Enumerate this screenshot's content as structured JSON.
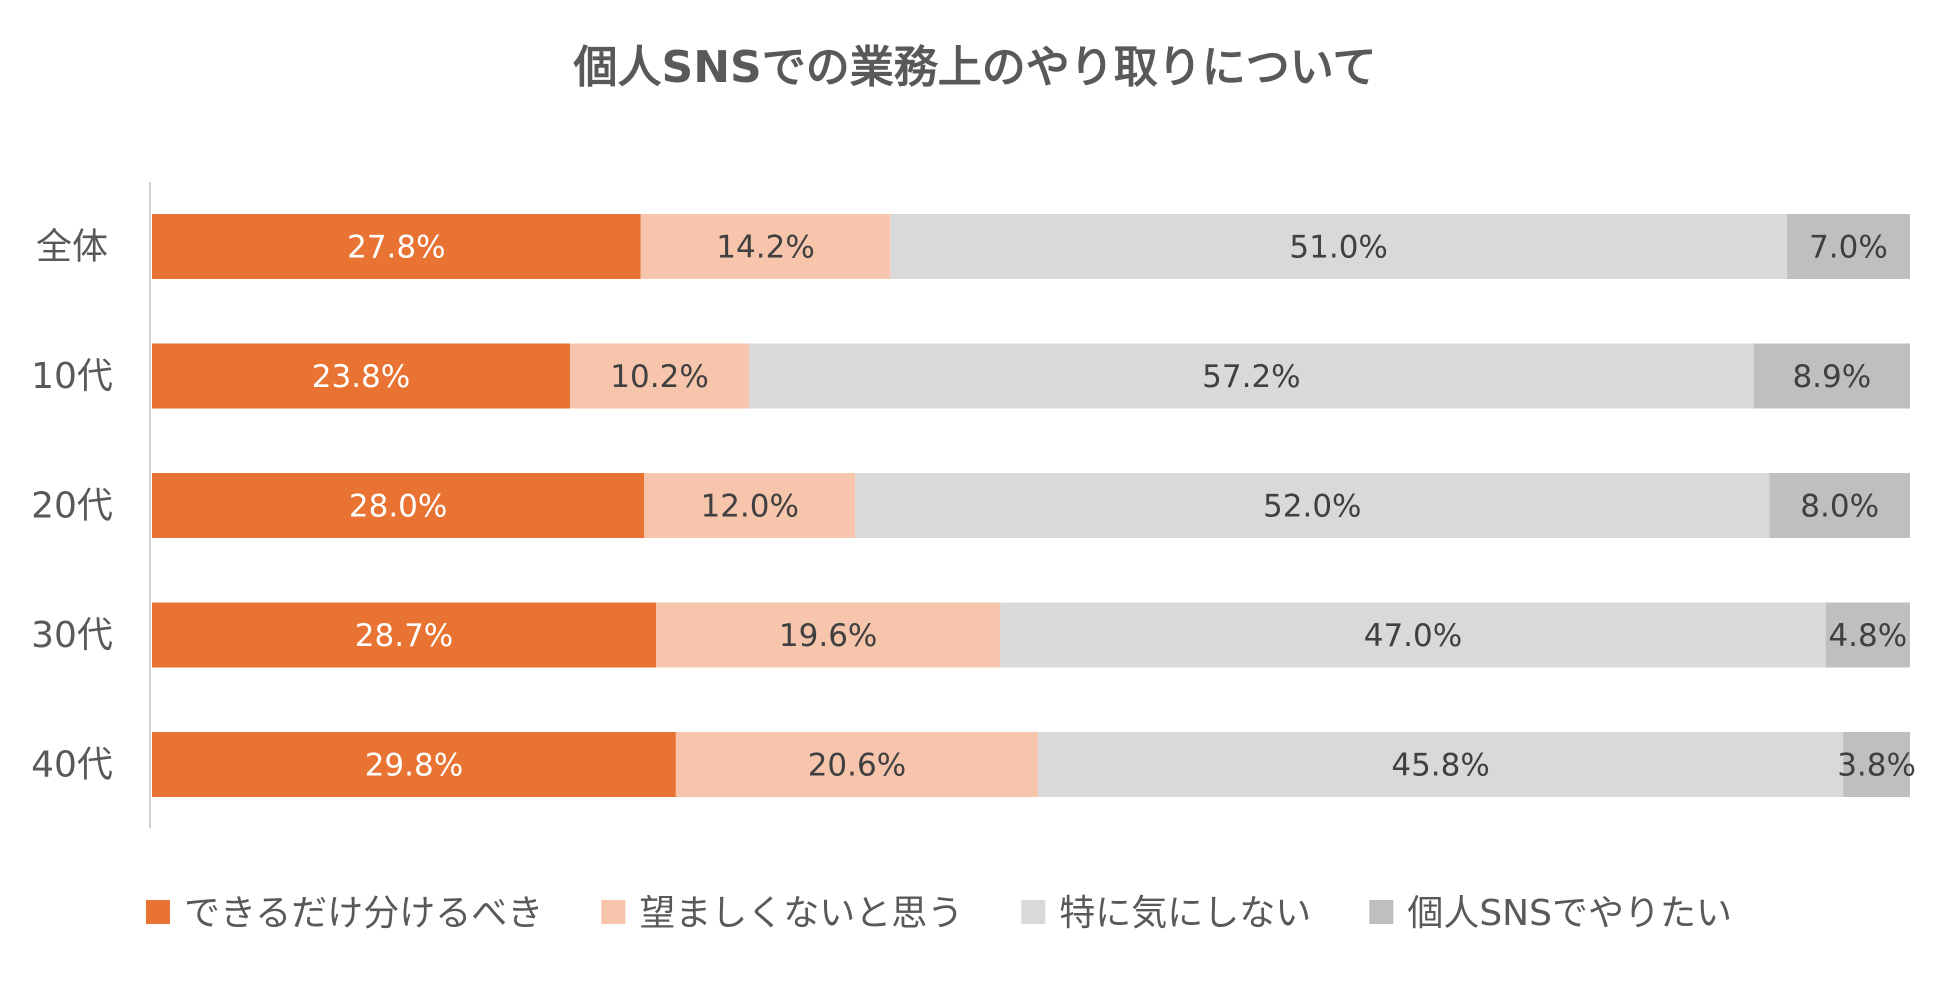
{
  "chart_data": {
    "type": "bar",
    "orientation": "horizontal",
    "stacked": true,
    "normalized": true,
    "title": "個人SNSでの業務上のやり取りについて",
    "xlabel": "",
    "ylabel": "",
    "xlim": [
      0,
      100
    ],
    "grid": false,
    "legend_position": "bottom",
    "categories": [
      "全体",
      "10代",
      "20代",
      "30代",
      "40代"
    ],
    "series": [
      {
        "name": "できるだけ分けるべき",
        "color": "#E87332",
        "label_color": "#FFFFFF",
        "values": [
          27.8,
          23.8,
          28.0,
          28.7,
          29.8
        ],
        "labels": [
          "27.8%",
          "23.8%",
          "28.0%",
          "28.7%",
          "29.8%"
        ]
      },
      {
        "name": "望ましくないと思う",
        "color": "#F6C5AC",
        "label_color": "#404040",
        "values": [
          14.2,
          10.2,
          12.0,
          19.6,
          20.6
        ],
        "labels": [
          "14.2%",
          "10.2%",
          "12.0%",
          "19.6%",
          "20.6%"
        ]
      },
      {
        "name": "特に気にしない",
        "color": "#D9D9D9",
        "label_color": "#404040",
        "values": [
          51.0,
          57.2,
          52.0,
          47.0,
          45.8
        ],
        "labels": [
          "51.0%",
          "57.2%",
          "52.0%",
          "47.0%",
          "45.8%"
        ]
      },
      {
        "name": "個人SNSでやりたい",
        "color": "#BFBFBF",
        "label_color": "#404040",
        "values": [
          7.0,
          8.9,
          8.0,
          4.8,
          3.8
        ],
        "labels": [
          "7.0%",
          "8.9%",
          "8.0%",
          "4.8%",
          "3.8%"
        ]
      }
    ]
  },
  "colors": {
    "title": "#595959",
    "axis_label": "#595959",
    "axis_line": "#D0D0D0",
    "legend_text": "#595959"
  }
}
